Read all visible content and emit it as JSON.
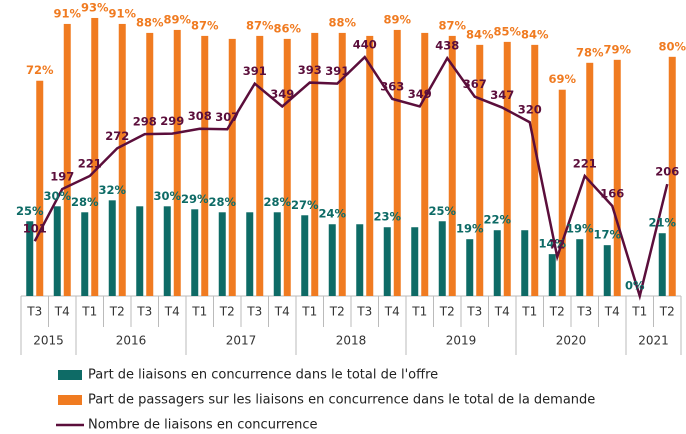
{
  "chart_data": {
    "type": "bar-line",
    "categories": [
      "T3",
      "T4",
      "T1",
      "T2",
      "T3",
      "T4",
      "T1",
      "T2",
      "T3",
      "T4",
      "T1",
      "T2",
      "T3",
      "T4",
      "T1",
      "T2",
      "T3",
      "T4",
      "T1",
      "T2",
      "T3",
      "T4",
      "T1",
      "T2"
    ],
    "category_groups": [
      "2015",
      "2015",
      "2016",
      "2016",
      "2016",
      "2016",
      "2017",
      "2017",
      "2017",
      "2017",
      "2018",
      "2018",
      "2018",
      "2018",
      "2019",
      "2019",
      "2019",
      "2019",
      "2020",
      "2020",
      "2020",
      "2020",
      "2021",
      "2021"
    ],
    "ylim": [
      0,
      97
    ],
    "y2lim": [
      0,
      534
    ],
    "series": [
      {
        "name": "Part de liaisons en concurrence dans le total de l'offre",
        "type": "bar",
        "color": "#0e6b66",
        "values": [
          25,
          30,
          28,
          32,
          30,
          30,
          29,
          28,
          28,
          28,
          27,
          24,
          24,
          23,
          23,
          25,
          19,
          22,
          22,
          14,
          19,
          17,
          0,
          21
        ],
        "value_labels": [
          "25%",
          "30%",
          "28%",
          "32%",
          null,
          "30%",
          "29%",
          "28%",
          null,
          "28%",
          "27%",
          "24%",
          null,
          "23%",
          null,
          "25%",
          "19%",
          "22%",
          null,
          "14%",
          "19%",
          "17%",
          "0%",
          "21%"
        ]
      },
      {
        "name": "Part de passagers sur les liaisons en concurrence dans le total de la demande",
        "type": "bar",
        "color": "#f07b21",
        "values": [
          72,
          91,
          93,
          91,
          88,
          89,
          87,
          86,
          87,
          86,
          88,
          88,
          87,
          89,
          88,
          87,
          84,
          85,
          84,
          69,
          78,
          79,
          null,
          80
        ],
        "value_labels": [
          "72%",
          "91%",
          "93%",
          "91%",
          "88%",
          "89%",
          "87%",
          null,
          "87%",
          "86%",
          null,
          "88%",
          null,
          "89%",
          null,
          "87%",
          "84%",
          "85%",
          "84%",
          "69%",
          "78%",
          "79%",
          null,
          "80%"
        ]
      },
      {
        "name": "Nombre de liaisons en concurrence",
        "type": "line",
        "axis": "y2",
        "color": "#5b0e3b",
        "values": [
          101,
          197,
          221,
          272,
          298,
          299,
          308,
          307,
          391,
          349,
          393,
          391,
          440,
          363,
          349,
          438,
          367,
          347,
          320,
          72,
          221,
          166,
          0,
          206
        ],
        "value_labels": [
          "101",
          "197",
          "221",
          "272",
          "298",
          "299",
          "308",
          "307",
          "391",
          "349",
          "393",
          "391",
          "440",
          "363",
          "349",
          "438",
          "367",
          "347",
          "320",
          "72",
          "221",
          "166",
          null,
          "206"
        ]
      }
    ]
  }
}
